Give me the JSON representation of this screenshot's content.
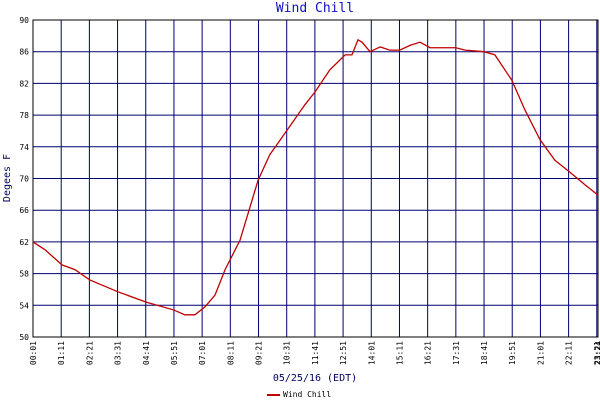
{
  "chart_data": {
    "type": "line",
    "title": "Wind Chill",
    "x_label": "05/25/16 (EDT)",
    "y_label": "Degees F",
    "xlim": [
      1,
      1404
    ],
    "xticks": [
      {
        "value": 1,
        "label": "00:01"
      },
      {
        "value": 71,
        "label": "01:11"
      },
      {
        "value": 141,
        "label": "02:21"
      },
      {
        "value": 211,
        "label": "03:31"
      },
      {
        "value": 281,
        "label": "04:41"
      },
      {
        "value": 351,
        "label": "05:51"
      },
      {
        "value": 421,
        "label": "07:01"
      },
      {
        "value": 491,
        "label": "08:11"
      },
      {
        "value": 561,
        "label": "09:21"
      },
      {
        "value": 631,
        "label": "10:31"
      },
      {
        "value": 701,
        "label": "11:41"
      },
      {
        "value": 771,
        "label": "12:51"
      },
      {
        "value": 841,
        "label": "14:01"
      },
      {
        "value": 911,
        "label": "15:11"
      },
      {
        "value": 981,
        "label": "16:21"
      },
      {
        "value": 1051,
        "label": "17:31"
      },
      {
        "value": 1121,
        "label": "18:41"
      },
      {
        "value": 1191,
        "label": "19:51"
      },
      {
        "value": 1261,
        "label": "21:01"
      },
      {
        "value": 1331,
        "label": "22:11"
      },
      {
        "value": 1401,
        "label": "23:21"
      },
      {
        "value": 1404,
        "label": "23:24"
      }
    ],
    "ylim": [
      50,
      90
    ],
    "yticks": [
      50,
      54,
      58,
      62,
      66,
      70,
      74,
      78,
      82,
      86,
      90
    ],
    "grid": true,
    "series": [
      {
        "name": "Wind Chill",
        "color": "#c00000",
        "x": [
          1,
          31,
          73,
          105,
          142,
          212,
          282,
          351,
          378,
          403,
          428,
          453,
          478,
          515,
          560,
          589,
          632,
          676,
          701,
          738,
          776,
          793,
          808,
          818,
          838,
          863,
          887,
          912,
          937,
          962,
          987,
          1012,
          1051,
          1074,
          1121,
          1148,
          1190,
          1223,
          1260,
          1297,
          1334,
          1372,
          1404
        ],
        "values": [
          62,
          61,
          59.1,
          58.5,
          57.2,
          55.7,
          54.4,
          53.4,
          52.8,
          52.8,
          53.8,
          55.3,
          58.5,
          62.2,
          69.8,
          73,
          76.1,
          79.3,
          80.9,
          83.7,
          85.6,
          85.6,
          87.5,
          87.2,
          86,
          86.6,
          86.2,
          86.2,
          86.8,
          87.2,
          86.5,
          86.5,
          86.5,
          86.2,
          86,
          85.6,
          82.4,
          78.6,
          74.9,
          72.3,
          70.8,
          69.2,
          67.9
        ]
      }
    ]
  }
}
